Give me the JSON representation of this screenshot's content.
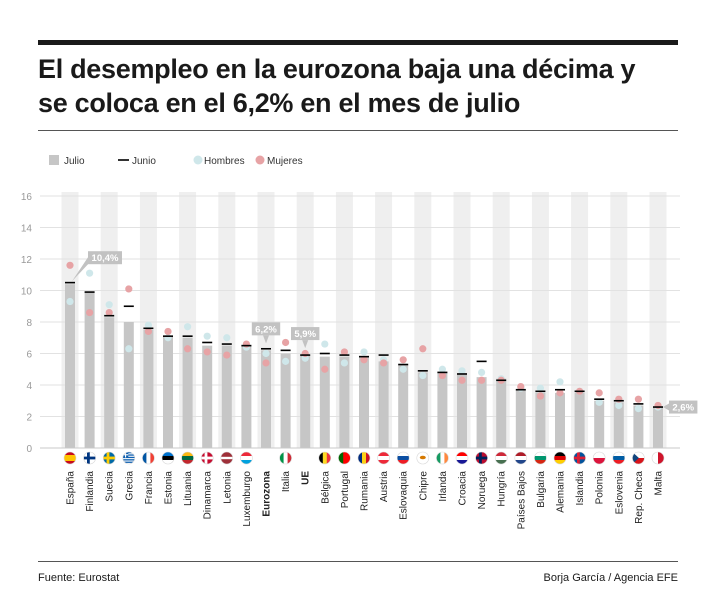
{
  "title_line1": "El desempleo en la eurozona baja una décima y",
  "title_line2": "se coloca en el 6,2% en el mes de julio",
  "source": "Fuente: Eurostat",
  "credit": "Borja García / Agencia EFE",
  "colors": {
    "bar": "#c6c6c6",
    "band": "#efefef",
    "junio": "#000000",
    "hombres": "#cfe7ea",
    "mujeres": "#e7a3a5",
    "callout": "#c2c2c2"
  },
  "chart_data": {
    "type": "bar",
    "ylim": [
      0,
      16
    ],
    "yticks": [
      "0",
      "2",
      "4",
      "6",
      "8",
      "10",
      "12",
      "14",
      "16"
    ],
    "legend": {
      "julio": "Julio",
      "junio": "Junio",
      "hombres": "Hombres",
      "mujeres": "Mujeres",
      "position": "top-left"
    },
    "categories": [
      "España",
      "Finlandia",
      "Suecia",
      "Grecia",
      "Francia",
      "Estonia",
      "Lituania",
      "Dinamarca",
      "Letonia",
      "Luxemburgo",
      "Eurozona",
      "Italia",
      "UE",
      "Bélgica",
      "Portugal",
      "Rumania",
      "Austria",
      "Eslovaquia",
      "Chipre",
      "Irlanda",
      "Croacia",
      "Noruega",
      "Hungría",
      "Países Bajos",
      "Bulgaria",
      "Alemania",
      "Islandia",
      "Polonia",
      "Eslovenia",
      "Rep. Checa",
      "Malta"
    ],
    "bold_categories": [
      "Eurozona",
      "UE"
    ],
    "series": [
      {
        "name": "Julio",
        "values": [
          10.4,
          9.9,
          8.3,
          8.0,
          7.5,
          7.1,
          7.0,
          6.5,
          6.5,
          6.5,
          6.2,
          6.0,
          5.9,
          5.8,
          5.8,
          5.8,
          5.5,
          5.3,
          4.8,
          4.8,
          4.7,
          4.5,
          4.4,
          3.7,
          3.5,
          3.5,
          3.5,
          3.0,
          2.9,
          2.7,
          2.6
        ]
      },
      {
        "name": "Junio",
        "values": [
          10.5,
          9.9,
          8.4,
          9.0,
          7.6,
          7.1,
          7.1,
          6.7,
          6.6,
          6.5,
          6.3,
          6.2,
          5.9,
          6.0,
          5.9,
          5.8,
          5.9,
          5.3,
          4.9,
          4.8,
          4.7,
          5.5,
          4.3,
          3.7,
          3.6,
          3.7,
          3.6,
          3.1,
          3.0,
          2.8,
          2.6
        ]
      },
      {
        "name": "Hombres",
        "values": [
          9.3,
          11.1,
          9.1,
          6.3,
          7.8,
          7.0,
          7.7,
          7.1,
          7.0,
          6.4,
          6.0,
          5.5,
          5.7,
          6.6,
          5.4,
          6.1,
          5.6,
          5.0,
          4.6,
          5.0,
          4.9,
          4.8,
          4.4,
          3.8,
          3.8,
          4.2,
          3.6,
          2.9,
          2.7,
          2.5,
          2.6
        ]
      },
      {
        "name": "Mujeres",
        "values": [
          11.6,
          8.6,
          8.6,
          10.1,
          7.4,
          7.4,
          6.3,
          6.1,
          5.9,
          6.6,
          5.4,
          6.7,
          6.0,
          5.0,
          6.1,
          5.6,
          5.4,
          5.6,
          6.3,
          4.6,
          4.3,
          4.3,
          4.3,
          3.9,
          3.3,
          3.5,
          3.6,
          3.5,
          3.1,
          3.1,
          2.7
        ]
      }
    ],
    "annotations": [
      {
        "category": "España",
        "label": "10,4%"
      },
      {
        "category": "Eurozona",
        "label": "6,2%"
      },
      {
        "category": "UE",
        "label": "5,9%"
      },
      {
        "category": "Malta",
        "label": "2,6%"
      }
    ]
  },
  "flags": [
    {
      "name": "spain-flag-icon",
      "colors": [
        "#c60b1e",
        "#ffc400",
        "#c60b1e"
      ],
      "layout": "h",
      "weights": [
        1,
        2,
        1
      ]
    },
    {
      "name": "finland-flag-icon",
      "colors": [
        "#ffffff",
        "#003580"
      ],
      "layout": "nordic"
    },
    {
      "name": "sweden-flag-icon",
      "colors": [
        "#006aa7",
        "#fecc00"
      ],
      "layout": "nordic"
    },
    {
      "name": "greece-flag-icon",
      "colors": [
        "#0d5eaf",
        "#ffffff"
      ],
      "layout": "greece"
    },
    {
      "name": "france-flag-icon",
      "colors": [
        "#0055a4",
        "#ffffff",
        "#ef4135"
      ],
      "layout": "v"
    },
    {
      "name": "estonia-flag-icon",
      "colors": [
        "#0072ce",
        "#000000",
        "#ffffff"
      ],
      "layout": "h"
    },
    {
      "name": "lithuania-flag-icon",
      "colors": [
        "#fdb913",
        "#006a44",
        "#c1272d"
      ],
      "layout": "h"
    },
    {
      "name": "denmark-flag-icon",
      "colors": [
        "#c60c30",
        "#ffffff"
      ],
      "layout": "nordic"
    },
    {
      "name": "latvia-flag-icon",
      "colors": [
        "#9e3039",
        "#ffffff",
        "#9e3039"
      ],
      "layout": "h",
      "weights": [
        2,
        1,
        2
      ]
    },
    {
      "name": "luxembourg-flag-icon",
      "colors": [
        "#ed2939",
        "#ffffff",
        "#00a1de"
      ],
      "layout": "h"
    },
    {
      "name": "eurozona-flag-icon",
      "colors": [
        "#ffffff"
      ],
      "layout": "none"
    },
    {
      "name": "italy-flag-icon",
      "colors": [
        "#009246",
        "#ffffff",
        "#ce2b37"
      ],
      "layout": "v"
    },
    {
      "name": "eu-flag-icon",
      "colors": [
        "#ffffff"
      ],
      "layout": "none"
    },
    {
      "name": "belgium-flag-icon",
      "colors": [
        "#000000",
        "#fdda24",
        "#ef3340"
      ],
      "layout": "v"
    },
    {
      "name": "portugal-flag-icon",
      "colors": [
        "#006600",
        "#ff0000"
      ],
      "layout": "v",
      "weights": [
        2,
        3
      ]
    },
    {
      "name": "romania-flag-icon",
      "colors": [
        "#002b7f",
        "#fcd116",
        "#ce1126"
      ],
      "layout": "v"
    },
    {
      "name": "austria-flag-icon",
      "colors": [
        "#ed2939",
        "#ffffff",
        "#ed2939"
      ],
      "layout": "h"
    },
    {
      "name": "slovakia-flag-icon",
      "colors": [
        "#ffffff",
        "#0b4ea2",
        "#ee1c25"
      ],
      "layout": "h"
    },
    {
      "name": "cyprus-flag-icon",
      "colors": [
        "#ffffff",
        "#d57800"
      ],
      "layout": "dot"
    },
    {
      "name": "ireland-flag-icon",
      "colors": [
        "#169b62",
        "#ffffff",
        "#ff883e"
      ],
      "layout": "v"
    },
    {
      "name": "croatia-flag-icon",
      "colors": [
        "#ff0000",
        "#ffffff",
        "#171796"
      ],
      "layout": "h"
    },
    {
      "name": "norway-flag-icon",
      "colors": [
        "#ba0c2f",
        "#00205b"
      ],
      "layout": "nordic"
    },
    {
      "name": "hungary-flag-icon",
      "colors": [
        "#ce2939",
        "#ffffff",
        "#477050"
      ],
      "layout": "h"
    },
    {
      "name": "netherlands-flag-icon",
      "colors": [
        "#ae1c28",
        "#ffffff",
        "#21468b"
      ],
      "layout": "h"
    },
    {
      "name": "bulgaria-flag-icon",
      "colors": [
        "#ffffff",
        "#00966e",
        "#d62612"
      ],
      "layout": "h"
    },
    {
      "name": "germany-flag-icon",
      "colors": [
        "#000000",
        "#dd0000",
        "#ffce00"
      ],
      "layout": "h"
    },
    {
      "name": "iceland-flag-icon",
      "colors": [
        "#02529c",
        "#dc1e35"
      ],
      "layout": "nordic"
    },
    {
      "name": "poland-flag-icon",
      "colors": [
        "#ffffff",
        "#dc143c"
      ],
      "layout": "h"
    },
    {
      "name": "slovenia-flag-icon",
      "colors": [
        "#ffffff",
        "#005da4",
        "#ed1c24"
      ],
      "layout": "h"
    },
    {
      "name": "czech-flag-icon",
      "colors": [
        "#ffffff",
        "#d7141a",
        "#11457e"
      ],
      "layout": "czech"
    },
    {
      "name": "malta-flag-icon",
      "colors": [
        "#ffffff",
        "#cf142b"
      ],
      "layout": "v"
    }
  ]
}
